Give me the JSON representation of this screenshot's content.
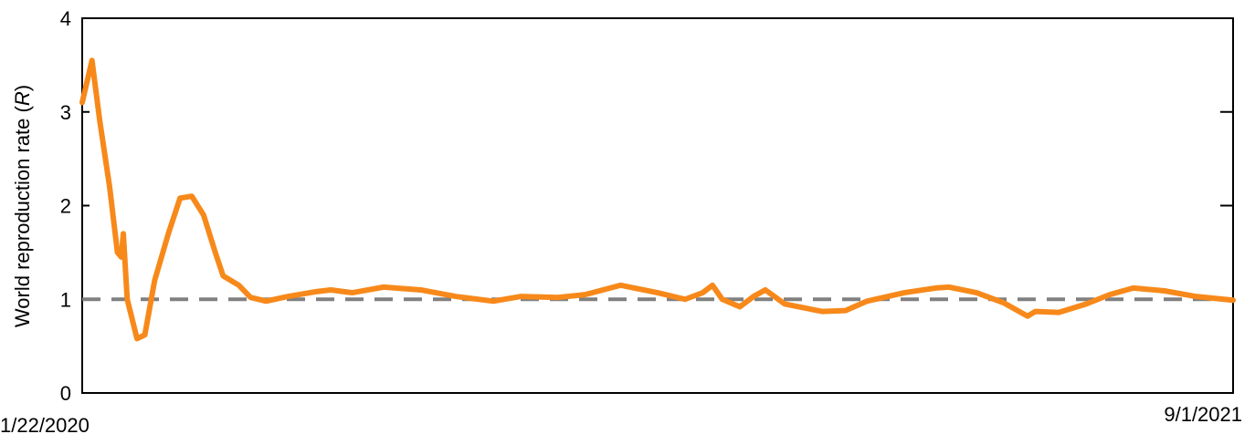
{
  "chart_data": {
    "type": "line",
    "ylabel_parts": [
      "World reproduction rate (",
      "R",
      ")"
    ],
    "x": [
      "1/22/2020",
      "1/27/2020",
      "1/31/2020",
      "2/5/2020",
      "2/9/2020",
      "2/11/2020",
      "2/12/2020",
      "2/14/2020",
      "2/19/2020",
      "2/23/2020",
      "2/28/2020",
      "3/6/2020",
      "3/12/2020",
      "3/18/2020",
      "3/24/2020",
      "3/30/2020",
      "4/3/2020",
      "4/11/2020",
      "4/17/2020",
      "4/25/2020",
      "5/6/2020",
      "5/20/2020",
      "5/28/2020",
      "6/8/2020",
      "6/24/2020",
      "7/13/2020",
      "7/31/2020",
      "8/19/2020",
      "9/2/2020",
      "9/21/2020",
      "10/5/2020",
      "10/23/2020",
      "11/11/2020",
      "11/25/2020",
      "12/4/2020",
      "12/9/2020",
      "12/14/2020",
      "12/23/2020",
      "12/30/2020",
      "1/5/2021",
      "1/15/2021",
      "2/3/2021",
      "2/15/2021",
      "2/26/2021",
      "3/17/2021",
      "4/2/2021",
      "4/9/2021",
      "4/23/2021",
      "5/7/2021",
      "5/19/2021",
      "5/23/2021",
      "6/4/2021",
      "6/18/2021",
      "6/30/2021",
      "7/12/2021",
      "7/28/2021",
      "8/13/2021",
      "9/1/2021"
    ],
    "series": [
      {
        "color": "#f7891b",
        "values": [
          3.1,
          3.55,
          2.9,
          2.2,
          1.5,
          1.45,
          1.7,
          1.0,
          0.58,
          0.62,
          1.2,
          1.7,
          2.08,
          2.1,
          1.9,
          1.5,
          1.25,
          1.15,
          1.02,
          0.98,
          1.03,
          1.08,
          1.1,
          1.07,
          1.13,
          1.1,
          1.03,
          0.98,
          1.03,
          1.02,
          1.05,
          1.15,
          1.07,
          1.0,
          1.07,
          1.15,
          1.0,
          0.92,
          1.03,
          1.1,
          0.95,
          0.87,
          0.88,
          0.98,
          1.07,
          1.12,
          1.13,
          1.07,
          0.96,
          0.82,
          0.87,
          0.86,
          0.95,
          1.05,
          1.12,
          1.09,
          1.03,
          0.99
        ]
      }
    ],
    "xlim": [
      "1/22/2020",
      "9/1/2021"
    ],
    "xticks": [
      "1/22/2020",
      "9/1/2021"
    ],
    "ylim": [
      0,
      4
    ],
    "yticks": [
      0,
      1,
      2,
      3,
      4
    ],
    "reference_line": {
      "value": 1,
      "color": "#808080"
    }
  }
}
